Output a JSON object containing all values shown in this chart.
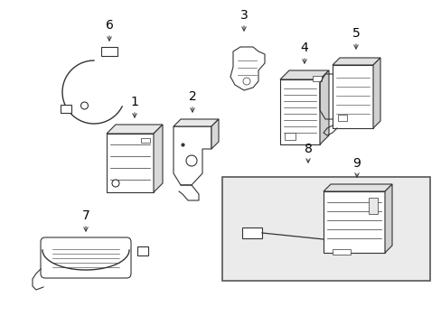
{
  "background_color": "#ffffff",
  "line_color": "#333333",
  "box8_fill": "#ebebeb",
  "label_fontsize": 10,
  "component_lw": 0.8
}
